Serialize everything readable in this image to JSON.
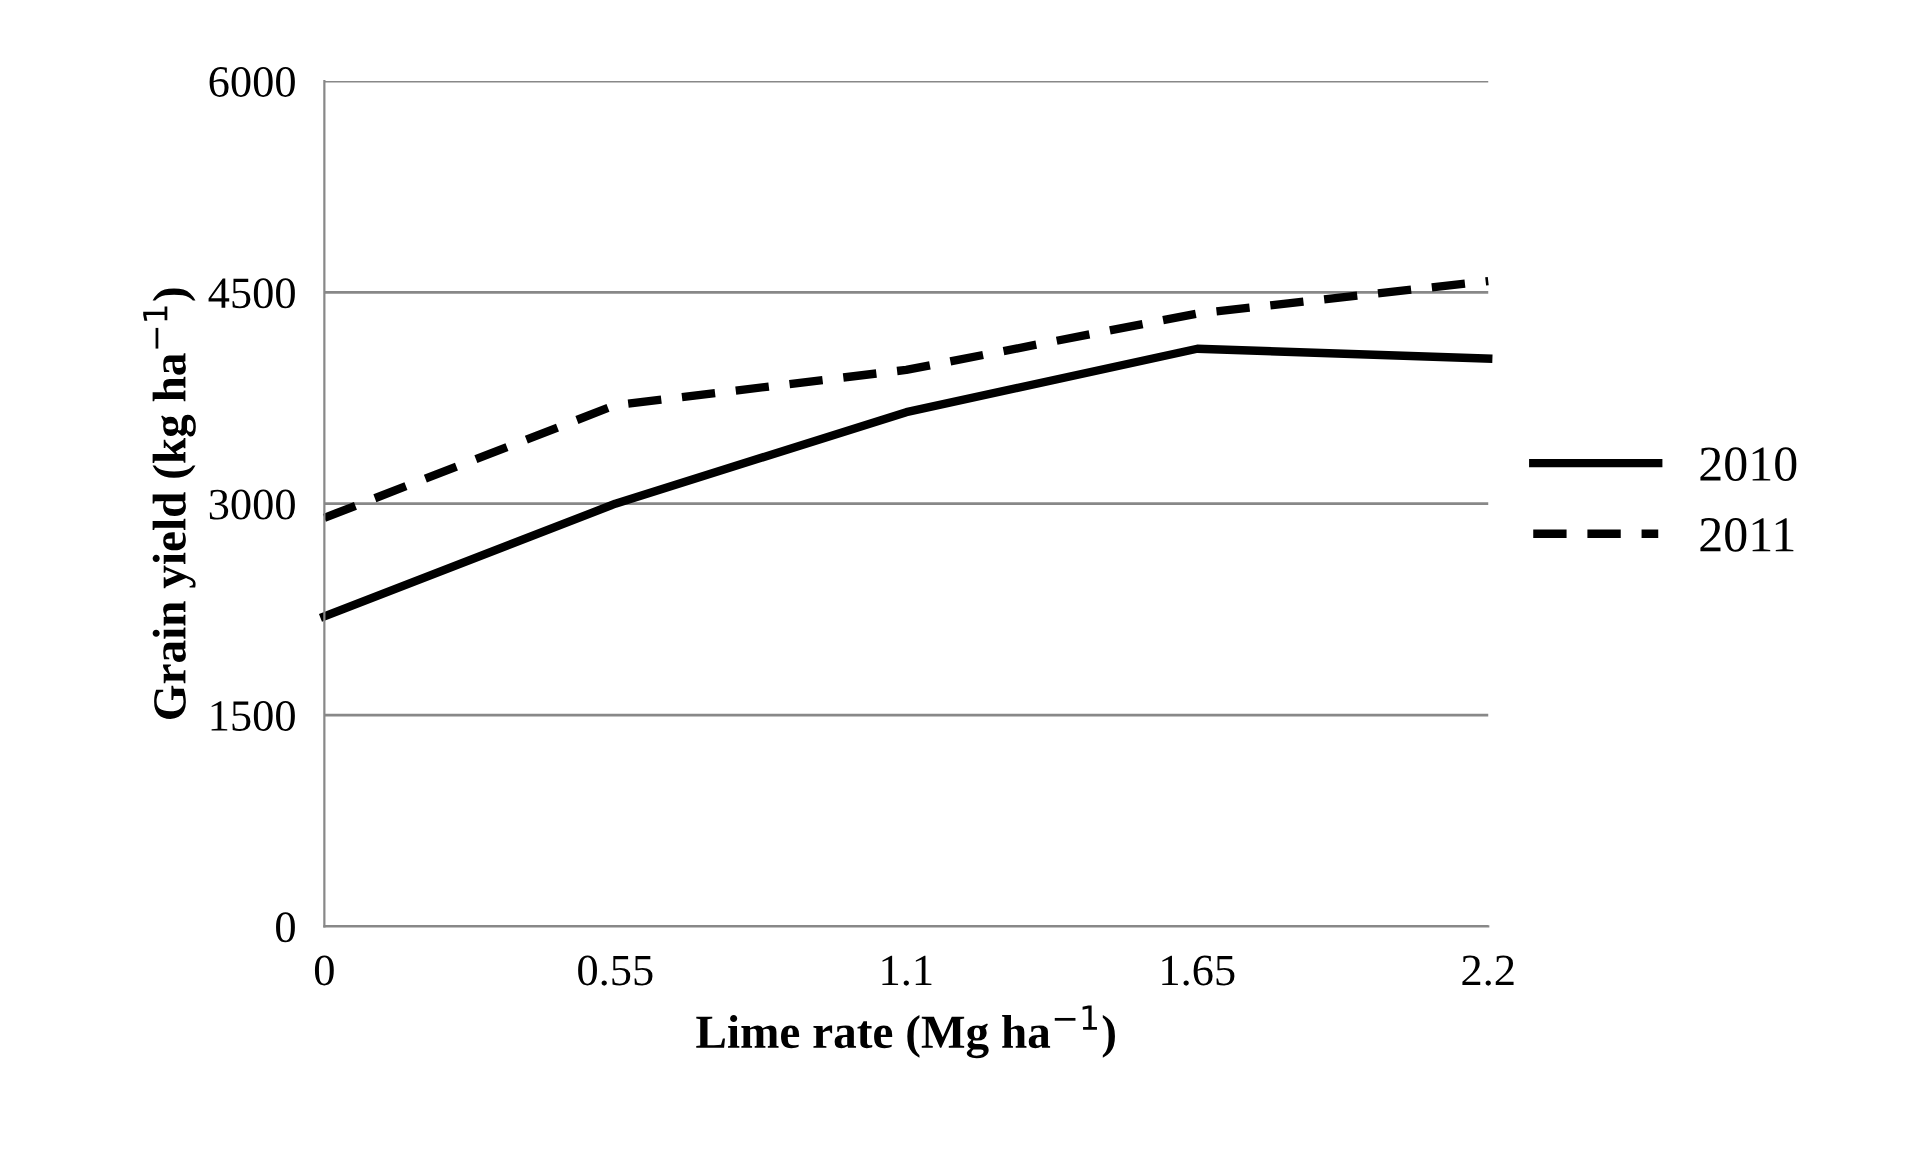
{
  "chart_data": {
    "type": "line",
    "xlabel": "Lime rate (Mg ha$^{−1}$)",
    "ylabel": "Grain yield (kg ha$^{−1}$)",
    "x": [
      0,
      0.55,
      1.1,
      1.65,
      2.2
    ],
    "series": [
      {
        "name": "2010",
        "color": "#000000",
        "line_style": "solid",
        "values": [
          2200,
          3000,
          3650,
          4100,
          4030
        ]
      },
      {
        "name": "2011",
        "color": "#000000",
        "line_style": "dashed",
        "values": [
          2900,
          3700,
          3950,
          4350,
          4580
        ]
      }
    ],
    "xlim": [
      0,
      2.2
    ],
    "xticks": [
      0,
      0.55,
      1.1,
      1.65,
      2.2
    ],
    "ylim": [
      0,
      6000
    ],
    "yticks": [
      0,
      1500,
      3000,
      4500,
      6000
    ],
    "grid": "y",
    "legend": "right",
    "marker": "none"
  }
}
